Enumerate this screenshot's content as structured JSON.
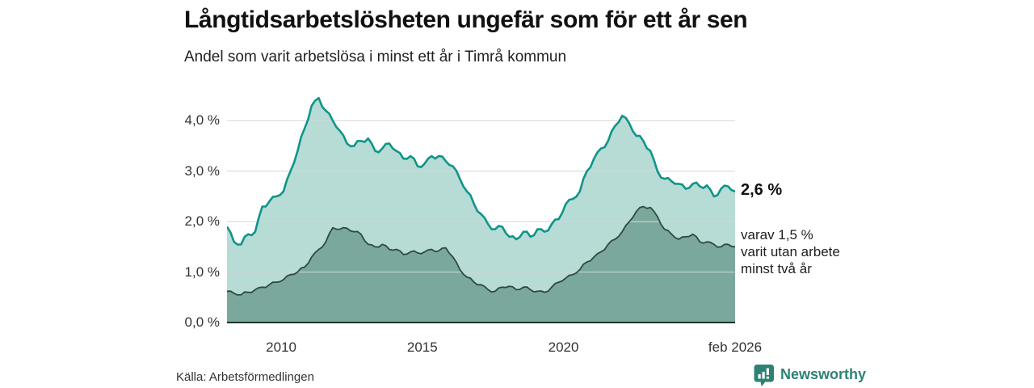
{
  "header": {
    "title": "Långtidsarbetslösheten ungefär som för ett år sen",
    "subtitle": "Andel som varit arbetslösa i minst ett år i Timrå kommun"
  },
  "chart_data": {
    "type": "area",
    "title": "Långtidsarbetslösheten ungefär som för ett år sen",
    "subtitle": "Andel som varit arbetslösa i minst ett år i Timrå kommun",
    "x_unit": "decimal-year (monthly series, feb 2008 – feb 2026)",
    "x_range": [
      2008.08,
      2026.08
    ],
    "ylim": [
      0,
      4.6
    ],
    "grid": true,
    "colors": {
      "total_line": "#0f9589",
      "total_fill": "#b7dbd5",
      "subset_line": "#2c4a42",
      "subset_fill": "#7ba89c",
      "gridline": "#d4d7d6",
      "baseline": "#20332e"
    },
    "yticks": [
      {
        "label": "0,0 %",
        "value": 0
      },
      {
        "label": "1,0 %",
        "value": 1
      },
      {
        "label": "2,0 %",
        "value": 2
      },
      {
        "label": "3,0 %",
        "value": 3
      },
      {
        "label": "4,0 %",
        "value": 4
      }
    ],
    "xticks": [
      {
        "label": "2010",
        "value": 2010.0
      },
      {
        "label": "2015",
        "value": 2015.0
      },
      {
        "label": "2020",
        "value": 2020.0
      },
      {
        "label": "feb 2026",
        "value": 2026.08
      }
    ],
    "x": [
      2008.08,
      2008.33,
      2008.58,
      2008.83,
      2009.08,
      2009.33,
      2009.58,
      2009.83,
      2010.08,
      2010.33,
      2010.58,
      2010.83,
      2011.08,
      2011.33,
      2011.58,
      2011.83,
      2012.08,
      2012.33,
      2012.58,
      2012.83,
      2013.08,
      2013.33,
      2013.58,
      2013.83,
      2014.08,
      2014.33,
      2014.58,
      2014.83,
      2015.08,
      2015.33,
      2015.58,
      2015.83,
      2016.08,
      2016.33,
      2016.58,
      2016.83,
      2017.08,
      2017.33,
      2017.58,
      2017.83,
      2018.08,
      2018.33,
      2018.58,
      2018.83,
      2019.08,
      2019.33,
      2019.58,
      2019.83,
      2020.08,
      2020.33,
      2020.58,
      2020.83,
      2021.08,
      2021.33,
      2021.58,
      2021.83,
      2022.08,
      2022.33,
      2022.58,
      2022.83,
      2023.08,
      2023.33,
      2023.58,
      2023.83,
      2024.08,
      2024.33,
      2024.58,
      2024.83,
      2025.08,
      2025.33,
      2025.58,
      2025.83,
      2026.08
    ],
    "series": [
      {
        "name": "Arbetslösa minst ett år (totalt)",
        "end_label": "2,6 %",
        "latest_value_pct": 2.6,
        "values": [
          1.9,
          1.6,
          1.55,
          1.75,
          1.8,
          2.3,
          2.4,
          2.5,
          2.6,
          3.0,
          3.4,
          3.85,
          4.3,
          4.45,
          4.2,
          4.0,
          3.8,
          3.55,
          3.5,
          3.6,
          3.65,
          3.4,
          3.45,
          3.55,
          3.4,
          3.25,
          3.3,
          3.1,
          3.15,
          3.3,
          3.3,
          3.2,
          3.1,
          2.85,
          2.6,
          2.35,
          2.15,
          1.95,
          1.85,
          1.9,
          1.7,
          1.65,
          1.8,
          1.7,
          1.85,
          1.8,
          1.95,
          2.05,
          2.35,
          2.45,
          2.6,
          3.0,
          3.25,
          3.45,
          3.6,
          3.9,
          4.1,
          3.95,
          3.7,
          3.6,
          3.4,
          3.0,
          2.85,
          2.8,
          2.75,
          2.65,
          2.75,
          2.7,
          2.72,
          2.5,
          2.65,
          2.7,
          2.6
        ]
      },
      {
        "name": "Varav utan arbete minst två år",
        "end_label": "varav 1,5 % varit utan arbete minst två år",
        "latest_value_pct": 1.5,
        "values": [
          0.62,
          0.58,
          0.55,
          0.6,
          0.65,
          0.7,
          0.75,
          0.8,
          0.85,
          0.95,
          1.0,
          1.1,
          1.3,
          1.45,
          1.6,
          1.88,
          1.85,
          1.87,
          1.8,
          1.75,
          1.55,
          1.5,
          1.55,
          1.45,
          1.45,
          1.35,
          1.4,
          1.38,
          1.4,
          1.45,
          1.42,
          1.48,
          1.3,
          1.05,
          0.9,
          0.8,
          0.75,
          0.65,
          0.62,
          0.7,
          0.72,
          0.65,
          0.7,
          0.65,
          0.62,
          0.6,
          0.7,
          0.8,
          0.88,
          0.95,
          1.05,
          1.2,
          1.3,
          1.4,
          1.55,
          1.65,
          1.8,
          2.0,
          2.2,
          2.3,
          2.28,
          2.1,
          1.85,
          1.75,
          1.65,
          1.7,
          1.75,
          1.6,
          1.6,
          1.55,
          1.5,
          1.55,
          1.5
        ]
      }
    ],
    "legend_position": "right-of-line-ends"
  },
  "annotations": {
    "total_label": "2,6 %",
    "subset_lines": [
      "varav 1,5 %",
      "varit utan arbete",
      "minst två år"
    ]
  },
  "footer": {
    "source": "Källa: Arbetsförmedlingen",
    "brand": "Newsworthy"
  }
}
